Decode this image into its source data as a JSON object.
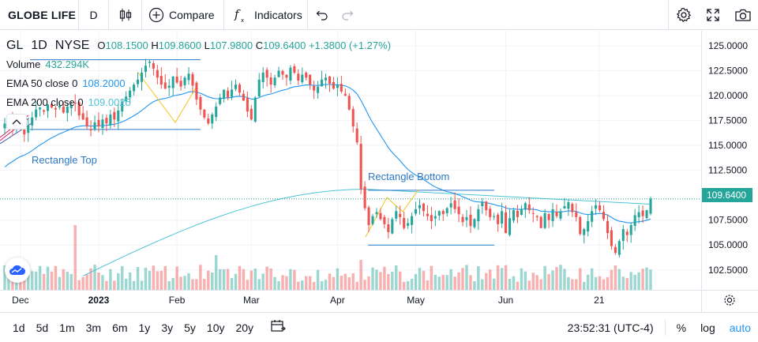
{
  "toolbar": {
    "symbol": "GLOBE LIFE",
    "interval": "D",
    "compare_label": "Compare",
    "indicators_label": "Indicators"
  },
  "legend": {
    "symbol": "GL",
    "interval": "1D",
    "exchange": "NYSE",
    "open_label": "O",
    "open": "108.1500",
    "high_label": "H",
    "high": "109.8600",
    "low_label": "L",
    "low": "107.9800",
    "close_label": "C",
    "close": "109.6400",
    "change": "+1.3800 (+1.27%)",
    "volume_label": "Volume",
    "volume": "432.294K",
    "ema50_label": "EMA 50 close 0",
    "ema50": "108.2000",
    "ema200_label": "EMA 200 close 0",
    "ema200": "109.0025"
  },
  "drawings": {
    "rect_top_label": "Rectangle Top",
    "rect_bottom_label": "Rectangle Bottom"
  },
  "price_axis": {
    "ticks": [
      "125.0000",
      "122.5000",
      "120.0000",
      "117.5000",
      "115.0000",
      "112.5000",
      "107.5000",
      "105.0000",
      "102.5000"
    ],
    "last_price": "109.6400"
  },
  "time_axis": {
    "ticks": [
      "Dec",
      "2023",
      "Feb",
      "Mar",
      "Apr",
      "May",
      "Jun",
      "21"
    ]
  },
  "bottom": {
    "ranges": [
      "1d",
      "5d",
      "1m",
      "3m",
      "6m",
      "1y",
      "3y",
      "5y",
      "10y",
      "20y"
    ],
    "clock": "23:52:31 (UTC-4)",
    "percent": "%",
    "log": "log",
    "auto": "auto"
  },
  "colors": {
    "up": "#26a69a",
    "down": "#ef5350",
    "ema50": "#2196f3",
    "ema200": "#4dc3d6",
    "drawing": "#2a78c9"
  },
  "chart_data": {
    "type": "candlestick",
    "title": "",
    "ylim": [
      100.5,
      126.5
    ],
    "closes": [
      117.2,
      117.5,
      116.6,
      117.3,
      116.8,
      116.1,
      117.0,
      117.8,
      118.6,
      118.8,
      118.4,
      119.1,
      118.8,
      118.6,
      119.0,
      118.3,
      118.9,
      119.0,
      119.2,
      118.0,
      117.6,
      116.9,
      116.5,
      117.3,
      116.9,
      117.6,
      117.2,
      118.1,
      117.6,
      118.5,
      119.4,
      119.9,
      120.5,
      121.1,
      121.6,
      122.3,
      123.0,
      123.4,
      122.7,
      121.8,
      121.1,
      120.7,
      121.0,
      121.9,
      121.3,
      120.9,
      121.8,
      122.2,
      121.0,
      119.6,
      118.6,
      117.8,
      117.2,
      118.1,
      118.9,
      119.8,
      120.6,
      119.8,
      120.6,
      121.1,
      120.3,
      119.5,
      118.4,
      117.6,
      119.8,
      121.6,
      122.3,
      121.8,
      121.1,
      121.8,
      122.5,
      122.1,
      121.8,
      122.8,
      122.3,
      121.5,
      122.1,
      121.8,
      121.1,
      120.5,
      120.9,
      121.6,
      121.8,
      121.2,
      120.7,
      121.1,
      120.4,
      120.0,
      118.6,
      116.9,
      115.3,
      110.6,
      108.7,
      107.0,
      107.9,
      108.3,
      107.6,
      107.1,
      106.3,
      107.6,
      108.4,
      107.8,
      106.7,
      107.2,
      107.9,
      108.6,
      109.0,
      108.4,
      107.9,
      107.4,
      107.9,
      108.4,
      108.1,
      108.7,
      109.2,
      108.6,
      108.1,
      107.3,
      107.8,
      106.9,
      107.6,
      108.6,
      109.3,
      108.5,
      107.8,
      107.9,
      107.1,
      108.4,
      106.2,
      107.7,
      108.5,
      107.8,
      108.6,
      109.2,
      108.5,
      108.2,
      107.8,
      106.7,
      108.2,
      107.5,
      108.6,
      107.9,
      108.4,
      108.9,
      109.3,
      108.3,
      107.8,
      106.1,
      106.6,
      107.4,
      108.4,
      109.0,
      108.5,
      107.6,
      106.2,
      104.9,
      104.2,
      105.4,
      106.6,
      106.0,
      107.0,
      108.0,
      108.3,
      107.9,
      108.5,
      109.64
    ]
  }
}
